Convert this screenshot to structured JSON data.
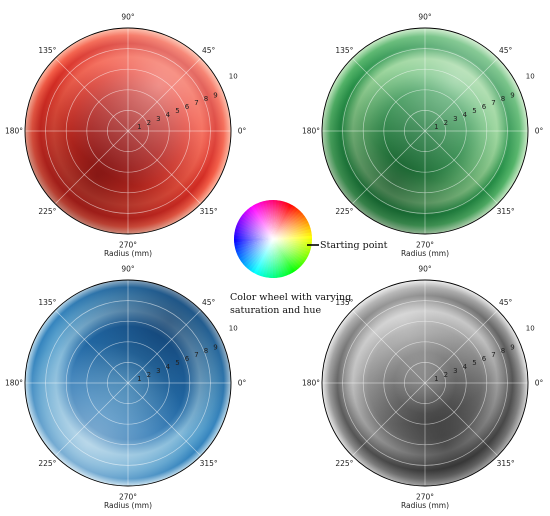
{
  "chart_data": [
    {
      "type": "heatmap",
      "projection": "polar",
      "colormap": "Reds",
      "colormap_colors": [
        "#fff5f0",
        "#fc9272",
        "#ef3b2c",
        "#a50f15",
        "#3a0004"
      ],
      "xlabel": "Radius (mm)",
      "angle_ticks": [
        "0°",
        "45°",
        "90°",
        "135°",
        "180°",
        "225°",
        "270°",
        "315°"
      ],
      "radial_ticks": [
        "1",
        "2",
        "3",
        "4",
        "5",
        "6",
        "7",
        "8",
        "9",
        "10"
      ],
      "rlim": [
        0,
        10
      ],
      "grid": true
    },
    {
      "type": "heatmap",
      "projection": "polar",
      "colormap": "Greens",
      "colormap_colors": [
        "#f7fcf5",
        "#a1d99b",
        "#41ab5d",
        "#006d2c",
        "#00280f"
      ],
      "xlabel": "Radius (mm)",
      "angle_ticks": [
        "0°",
        "45°",
        "90°",
        "135°",
        "180°",
        "225°",
        "270°",
        "315°"
      ],
      "radial_ticks": [
        "1",
        "2",
        "3",
        "4",
        "5",
        "6",
        "7",
        "8",
        "9",
        "10"
      ],
      "rlim": [
        0,
        10
      ],
      "grid": true
    },
    {
      "type": "heatmap",
      "projection": "polar",
      "colormap": "Blues",
      "colormap_colors": [
        "#f7fbff",
        "#9ecae1",
        "#4292c6",
        "#08519c",
        "#031c44"
      ],
      "xlabel": "Radius (mm)",
      "angle_ticks": [
        "0°",
        "45°",
        "90°",
        "135°",
        "180°",
        "225°",
        "270°",
        "315°"
      ],
      "radial_ticks": [
        "1",
        "2",
        "3",
        "4",
        "5",
        "6",
        "7",
        "8",
        "9",
        "10"
      ],
      "rlim": [
        0,
        10
      ],
      "grid": true
    },
    {
      "type": "heatmap",
      "projection": "polar",
      "colormap": "Greys",
      "colormap_colors": [
        "#ffffff",
        "#cfcfcf",
        "#8a8a8a",
        "#404040",
        "#050505"
      ],
      "xlabel": "Radius (mm)",
      "angle_ticks": [
        "0°",
        "45°",
        "90°",
        "135°",
        "180°",
        "225°",
        "270°",
        "315°"
      ],
      "radial_ticks": [
        "1",
        "2",
        "3",
        "4",
        "5",
        "6",
        "7",
        "8",
        "9",
        "10"
      ],
      "rlim": [
        0,
        10
      ],
      "grid": true
    }
  ],
  "color_wheel": {
    "starting_point_label": "Starting point",
    "caption_line1": "Color wheel with varying",
    "caption_line2": "saturation and hue"
  }
}
